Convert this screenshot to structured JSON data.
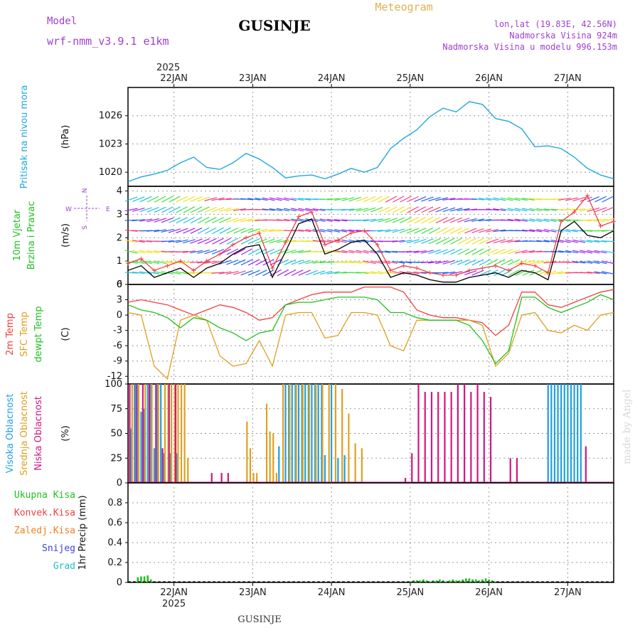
{
  "header": {
    "model_label": "Model",
    "model_name": "wrf-nmm_v3.9.1 e1km",
    "station": "GUSINJE",
    "product": "Meteogram",
    "coords": "lon,lat (19.83E, 42.56N)",
    "elevation": "Nadmorska Visina 924m",
    "model_elevation": "Nadmorska Visina u modelu 996.153m",
    "watermark": "made by Angel",
    "footer": "GUSINJE"
  },
  "colors": {
    "purple": "#a040d0",
    "gold": "#e0b050",
    "pressure": "#20a8e0",
    "temp": "#f04040",
    "sfc": "#e0a020",
    "dew": "#20c020",
    "high_cloud": "#20a0e0",
    "mid_cloud": "#e0a020",
    "low_cloud": "#d01880",
    "total_precip": "#20c020",
    "conv_precip": "#f04040",
    "frz_precip": "#f08020",
    "snow": "#4040e0",
    "hail": "#20c0c0",
    "wind_speed": "#000000",
    "gust": "#f04040"
  },
  "time_axis": {
    "year": "2025",
    "day_labels": [
      "22JAN",
      "23JAN",
      "24JAN",
      "25JAN",
      "26JAN",
      "27JAN"
    ],
    "start_hour": 0,
    "end_hour": 148
  },
  "chart_data": [
    {
      "type": "line",
      "id": "pressure",
      "ylabel": "(hPa)",
      "side_labels": [
        "Pritisak na nivou mora"
      ],
      "ylim": [
        1018.5,
        1029
      ],
      "yticks": [
        1020,
        1023,
        1026
      ],
      "grid": true,
      "series": [
        {
          "color": "#20a8e0",
          "x": [
            0,
            4,
            8,
            12,
            16,
            20,
            24,
            28,
            32,
            36,
            40,
            44,
            48,
            52,
            56,
            60,
            64,
            68,
            72,
            76,
            80,
            84,
            88,
            92,
            96,
            100,
            104,
            108,
            112,
            116,
            120,
            124,
            128,
            132,
            136,
            140,
            144,
            148
          ],
          "values": [
            1019.0,
            1019.5,
            1019.8,
            1020.2,
            1021.0,
            1021.6,
            1020.5,
            1020.3,
            1021.0,
            1022.0,
            1021.4,
            1020.5,
            1019.4,
            1019.6,
            1019.7,
            1019.3,
            1019.8,
            1020.4,
            1020.0,
            1020.5,
            1022.5,
            1023.6,
            1024.5,
            1025.9,
            1026.8,
            1026.4,
            1027.5,
            1027.2,
            1025.7,
            1025.4,
            1024.6,
            1022.7,
            1022.8,
            1022.5,
            1021.6,
            1020.4,
            1019.7,
            1019.3
          ]
        }
      ]
    },
    {
      "type": "line",
      "id": "wind",
      "ylabel": "(m/s)",
      "side_labels": [
        "10m Vjetar",
        "Brzina i Pravac"
      ],
      "direction_key": [
        "N",
        "W",
        "E",
        "S"
      ],
      "ylim": [
        0,
        4.2
      ],
      "yticks": [
        0,
        1,
        2,
        3,
        4
      ],
      "grid": true,
      "series": [
        {
          "name": "",
          "color": "#000000",
          "x": [
            0,
            4,
            8,
            12,
            16,
            20,
            24,
            28,
            32,
            36,
            40,
            44,
            48,
            52,
            56,
            60,
            64,
            68,
            72,
            76,
            80,
            84,
            88,
            92,
            96,
            100,
            104,
            108,
            112,
            116,
            120,
            124,
            128,
            132,
            136,
            140,
            144,
            148
          ],
          "values": [
            0.6,
            0.8,
            0.3,
            0.5,
            0.7,
            0.3,
            0.7,
            0.9,
            1.3,
            1.6,
            1.7,
            0.3,
            1.4,
            2.6,
            2.8,
            1.3,
            1.5,
            1.8,
            1.9,
            1.3,
            0.3,
            0.5,
            0.4,
            0.2,
            0.1,
            0.1,
            0.3,
            0.4,
            0.5,
            0.3,
            0.6,
            0.5,
            0.2,
            2.3,
            2.7,
            2.1,
            2.0,
            2.3
          ]
        },
        {
          "name": "",
          "color": "#f04040",
          "x": [
            0,
            4,
            8,
            12,
            16,
            20,
            24,
            28,
            32,
            36,
            40,
            44,
            48,
            52,
            56,
            60,
            64,
            68,
            72,
            76,
            80,
            84,
            88,
            92,
            96,
            100,
            104,
            108,
            112,
            116,
            120,
            124,
            128,
            132,
            136,
            140,
            144,
            148
          ],
          "values": [
            0.9,
            1.1,
            0.6,
            0.8,
            1.0,
            0.6,
            1.0,
            1.3,
            1.7,
            2.0,
            2.2,
            0.7,
            1.8,
            2.9,
            3.1,
            1.7,
            1.9,
            2.2,
            2.3,
            1.7,
            0.6,
            0.8,
            0.7,
            0.5,
            0.4,
            0.4,
            0.6,
            0.7,
            0.8,
            0.6,
            0.9,
            0.8,
            0.5,
            2.7,
            3.1,
            3.8,
            2.5,
            2.7
          ]
        }
      ]
    },
    {
      "type": "line",
      "id": "temperature",
      "ylabel": "(C)",
      "side_labels": [
        "2m Temp",
        "SFC Temp",
        "dewpt Temp"
      ],
      "ylim": [
        -13.5,
        6
      ],
      "yticks": [
        -12,
        -9,
        -6,
        -3,
        0,
        3,
        6
      ],
      "grid": true,
      "series": [
        {
          "name": "2m Temp",
          "color": "#f04040",
          "x": [
            0,
            4,
            8,
            12,
            16,
            20,
            24,
            28,
            32,
            36,
            40,
            44,
            48,
            52,
            56,
            60,
            64,
            68,
            72,
            76,
            80,
            84,
            88,
            92,
            96,
            100,
            104,
            108,
            112,
            116,
            120,
            124,
            128,
            132,
            136,
            140,
            144,
            148
          ],
          "values": [
            2.5,
            3.0,
            2.5,
            2.0,
            1.0,
            0.0,
            1.0,
            2.0,
            1.5,
            0.5,
            -1.0,
            -0.5,
            2.0,
            3.0,
            4.0,
            4.5,
            4.5,
            4.5,
            5.5,
            5.5,
            5.5,
            4.5,
            1.0,
            0.0,
            -0.5,
            -0.5,
            -1.0,
            -1.5,
            -4.0,
            -2.0,
            4.5,
            4.5,
            2.0,
            1.5,
            2.5,
            3.5,
            4.5,
            5.0
          ]
        },
        {
          "name": "SFC Temp",
          "color": "#e0a020",
          "x": [
            0,
            4,
            8,
            12,
            16,
            20,
            24,
            28,
            32,
            36,
            40,
            44,
            48,
            52,
            56,
            60,
            64,
            68,
            72,
            76,
            80,
            84,
            88,
            92,
            96,
            100,
            104,
            108,
            112,
            116,
            120,
            124,
            128,
            132,
            136,
            140,
            144,
            148
          ],
          "values": [
            0.5,
            0.0,
            -10.0,
            -12.5,
            -1.0,
            0.0,
            -1.0,
            -8.0,
            -10.0,
            -9.5,
            -5.0,
            -10.0,
            0.0,
            0.5,
            0.5,
            -4.5,
            -4.0,
            0.5,
            0.5,
            0.0,
            -6.0,
            -7.0,
            -1.0,
            -1.0,
            -1.0,
            -1.0,
            -1.0,
            -2.0,
            -10.0,
            -7.5,
            0.0,
            0.5,
            -3.0,
            -3.5,
            -2.0,
            -3.0,
            0.0,
            0.5
          ]
        },
        {
          "name": "dewpt Temp",
          "color": "#20c020",
          "x": [
            0,
            4,
            8,
            12,
            16,
            20,
            24,
            28,
            32,
            36,
            40,
            44,
            48,
            52,
            56,
            60,
            64,
            68,
            72,
            76,
            80,
            84,
            88,
            92,
            96,
            100,
            104,
            108,
            112,
            116,
            120,
            124,
            128,
            132,
            136,
            140,
            144,
            148
          ],
          "values": [
            2.0,
            1.0,
            0.5,
            -0.5,
            -2.5,
            -0.5,
            -1.0,
            -2.5,
            -3.5,
            -5.0,
            -3.5,
            -3.0,
            2.0,
            2.5,
            2.5,
            3.0,
            3.5,
            3.5,
            3.5,
            3.0,
            0.5,
            0.5,
            -0.5,
            -1.0,
            -1.0,
            -1.0,
            -2.0,
            -5.0,
            -9.5,
            -7.0,
            3.5,
            3.5,
            1.5,
            0.5,
            1.5,
            2.5,
            4.0,
            3.0
          ]
        }
      ]
    },
    {
      "type": "bar",
      "id": "cloud",
      "ylabel": "(%)",
      "side_labels": [
        "Visoka Oblacnost",
        "Srednja Oblacnost",
        "Niska Oblacnost"
      ],
      "ylim": [
        0,
        100
      ],
      "yticks": [
        0,
        25,
        50,
        75,
        100
      ],
      "grid": true,
      "series": [
        {
          "name": "Visoka Oblacnost",
          "color": "#20a0e0",
          "x": [
            1,
            2,
            3,
            4,
            5,
            6,
            7,
            8,
            9,
            10,
            11,
            13,
            15,
            46,
            48,
            49,
            50,
            51,
            52,
            53,
            54,
            55,
            56,
            57,
            58,
            59,
            60,
            62,
            64,
            66,
            128,
            129,
            130,
            131,
            132,
            133,
            134,
            135,
            136,
            137,
            138
          ],
          "values": [
            55,
            100,
            100,
            72,
            75,
            100,
            100,
            35,
            100,
            100,
            30,
            30,
            30,
            37,
            100,
            100,
            100,
            100,
            100,
            100,
            100,
            100,
            100,
            100,
            100,
            100,
            28,
            100,
            25,
            28,
            100,
            100,
            100,
            100,
            100,
            100,
            100,
            100,
            100,
            100,
            100
          ]
        },
        {
          "name": "Srednja Oblacnost",
          "color": "#e0a020",
          "x": [
            1,
            3,
            5,
            7,
            9,
            11,
            12,
            13,
            14,
            15,
            16,
            17,
            18,
            36,
            37,
            38,
            39,
            40,
            42,
            43,
            44,
            45,
            47,
            49,
            51,
            53,
            55,
            57,
            59,
            61,
            63,
            65,
            67,
            69,
            71
          ],
          "values": [
            100,
            100,
            100,
            100,
            100,
            100,
            100,
            100,
            100,
            100,
            100,
            100,
            25,
            62,
            35,
            10,
            10,
            0,
            80,
            52,
            50,
            10,
            100,
            100,
            100,
            100,
            100,
            100,
            100,
            100,
            100,
            95,
            70,
            40,
            35
          ]
        },
        {
          "name": "Niska Oblacnost",
          "color": "#d01880",
          "x": [
            0,
            2,
            4,
            6,
            8,
            10,
            12,
            14,
            25,
            28,
            30,
            84,
            86,
            88,
            90,
            92,
            94,
            96,
            98,
            100,
            102,
            104,
            106,
            108,
            110,
            112,
            114,
            116,
            118,
            136,
            139
          ],
          "values": [
            100,
            100,
            100,
            100,
            100,
            35,
            100,
            100,
            10,
            10,
            10,
            5,
            30,
            100,
            92,
            92,
            92,
            92,
            92,
            100,
            100,
            92,
            100,
            92,
            87,
            0,
            0,
            25,
            25,
            0,
            37
          ]
        }
      ]
    },
    {
      "type": "bar",
      "id": "precip",
      "ylabel": "1hr Precip (mm)",
      "side_labels": [
        "Ukupna Kisa",
        "Konvek.Kisa",
        "Zaledj.Kisa",
        "Snijeg",
        "Grad"
      ],
      "ylim": [
        0,
        1.0
      ],
      "yticks": [
        0,
        0.2,
        0.4,
        0.6,
        0.8
      ],
      "grid": true,
      "series": [
        {
          "name": "Ukupna Kisa",
          "color": "#20c020",
          "x": [
            3,
            4,
            5,
            6,
            7,
            86,
            87,
            88,
            89,
            90,
            91,
            92,
            93,
            94,
            95,
            96,
            97,
            98,
            99,
            100,
            101,
            102,
            103,
            104,
            105,
            106,
            107,
            108,
            109,
            110,
            111,
            112
          ],
          "values": [
            0.05,
            0.06,
            0.06,
            0.07,
            0.03,
            0.01,
            0.02,
            0.02,
            0.02,
            0.03,
            0.02,
            0.01,
            0.02,
            0.02,
            0.03,
            0.02,
            0.01,
            0.02,
            0.03,
            0.02,
            0.02,
            0.03,
            0.04,
            0.04,
            0.03,
            0.03,
            0.02,
            0.03,
            0.04,
            0.03,
            0.02,
            0.01
          ]
        }
      ]
    }
  ]
}
